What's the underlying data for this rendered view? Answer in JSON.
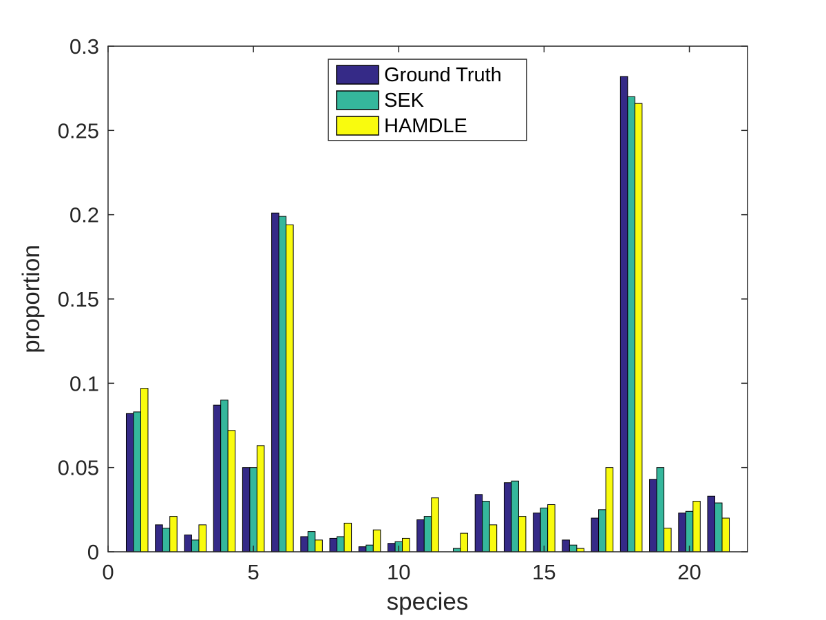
{
  "chart_data": {
    "type": "bar",
    "title": "",
    "xlabel": "species",
    "ylabel": "proportion",
    "xlim": [
      0,
      22
    ],
    "ylim": [
      0,
      0.3
    ],
    "xticks": [
      0,
      5,
      10,
      15,
      20
    ],
    "yticks": [
      0,
      0.05,
      0.1,
      0.15,
      0.2,
      0.25,
      0.3
    ],
    "xtick_labels": [
      "0",
      "5",
      "10",
      "15",
      "20"
    ],
    "ytick_labels": [
      "0",
      "0.05",
      "0.1",
      "0.15",
      "0.2",
      "0.25",
      "0.3"
    ],
    "grid": false,
    "legend_position": "top-center",
    "categories": [
      1,
      2,
      3,
      4,
      5,
      6,
      7,
      8,
      9,
      10,
      11,
      12,
      13,
      14,
      15,
      16,
      17,
      18,
      19,
      20,
      21
    ],
    "series": [
      {
        "name": "Ground Truth",
        "color": "#352a87",
        "values": [
          0.082,
          0.016,
          0.01,
          0.087,
          0.05,
          0.201,
          0.009,
          0.008,
          0.003,
          0.005,
          0.019,
          0.0,
          0.034,
          0.041,
          0.023,
          0.007,
          0.02,
          0.282,
          0.043,
          0.023,
          0.033
        ]
      },
      {
        "name": "SEK",
        "color": "#35b79c",
        "values": [
          0.083,
          0.014,
          0.007,
          0.09,
          0.05,
          0.199,
          0.012,
          0.009,
          0.004,
          0.006,
          0.021,
          0.002,
          0.03,
          0.042,
          0.026,
          0.004,
          0.025,
          0.27,
          0.05,
          0.024,
          0.029
        ]
      },
      {
        "name": "HAMDLE",
        "color": "#f9fb0e",
        "values": [
          0.097,
          0.021,
          0.016,
          0.072,
          0.063,
          0.194,
          0.007,
          0.017,
          0.013,
          0.008,
          0.032,
          0.011,
          0.016,
          0.021,
          0.028,
          0.002,
          0.05,
          0.266,
          0.014,
          0.03,
          0.02
        ]
      }
    ]
  }
}
